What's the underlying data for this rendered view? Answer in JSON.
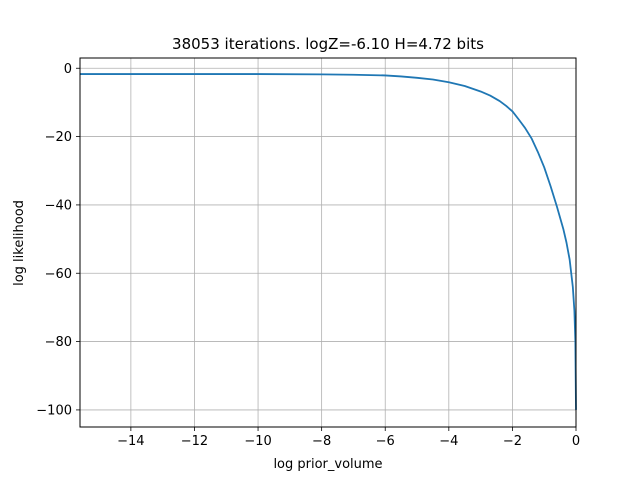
{
  "chart_data": {
    "type": "line",
    "title": "38053 iterations. logZ=-6.10 H=4.72 bits",
    "xlabel": "log prior_volume",
    "ylabel": "log likelihood",
    "xlim": [
      -15.6,
      0.0
    ],
    "ylim": [
      -105,
      3
    ],
    "xticks": [
      -14,
      -12,
      -10,
      -8,
      -6,
      -4,
      -2,
      0
    ],
    "xtick_labels": [
      "−14",
      "−12",
      "−10",
      "−8",
      "−6",
      "−4",
      "−2",
      "0"
    ],
    "yticks": [
      0,
      -20,
      -40,
      -60,
      -80,
      -100
    ],
    "ytick_labels": [
      "0",
      "−20",
      "−40",
      "−60",
      "−80",
      "−100"
    ],
    "grid": true,
    "series": [
      {
        "color": "#1f77b4",
        "x": [
          -15.6,
          -14,
          -12,
          -10,
          -8,
          -7,
          -6,
          -5.5,
          -5,
          -4.5,
          -4,
          -3.5,
          -3,
          -2.7,
          -2.4,
          -2.2,
          -2,
          -1.8,
          -1.6,
          -1.4,
          -1.2,
          -1,
          -0.8,
          -0.6,
          -0.4,
          -0.3,
          -0.2,
          -0.1,
          -0.05,
          -0.02,
          0
        ],
        "y": [
          -1.7,
          -1.7,
          -1.7,
          -1.7,
          -1.8,
          -1.9,
          -2.1,
          -2.4,
          -2.8,
          -3.3,
          -4.1,
          -5.2,
          -6.8,
          -8.0,
          -9.6,
          -11.0,
          -12.6,
          -15.0,
          -17.5,
          -20.5,
          -24.5,
          -29.0,
          -34.5,
          -40.5,
          -47.0,
          -51.0,
          -56.0,
          -64.0,
          -71.0,
          -80.0,
          -100.0
        ]
      }
    ]
  }
}
